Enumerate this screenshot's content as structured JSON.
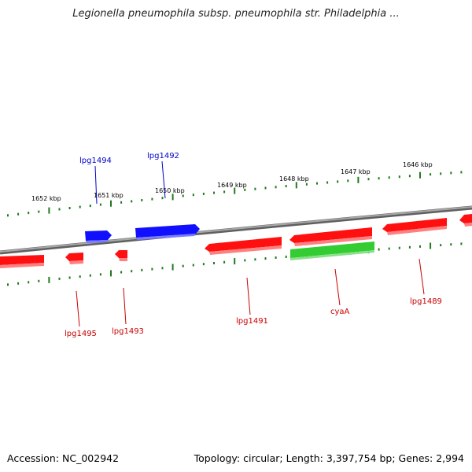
{
  "title": "Legionella pneumophila subsp. pneumophila str. Philadelphia ...",
  "footer": {
    "accession": "Accession: NC_002942",
    "summary": "Topology: circular; Length: 3,397,754 bp; Genes: 2,994"
  },
  "colors": {
    "backbone": "#808080",
    "ticks": "#1f7a1f",
    "forward_gene": "#1010ff",
    "reverse_gene": "#ff1010",
    "rna_gene": "#33cc33",
    "forward_label": "#0000cc",
    "reverse_label": "#cc0000"
  },
  "tick_labels": [
    "1652 kbp",
    "1651 kbp",
    "1650 kbp",
    "1649 kbp",
    "1648 kbp",
    "1647 kbp",
    "1646 kbp"
  ],
  "gene_labels": [
    {
      "name": "lpg1494",
      "strand": "forward"
    },
    {
      "name": "lpg1492",
      "strand": "forward"
    },
    {
      "name": "lpg1495",
      "strand": "reverse"
    },
    {
      "name": "lpg1493",
      "strand": "reverse"
    },
    {
      "name": "lpg1491",
      "strand": "reverse"
    },
    {
      "name": "cyaA",
      "strand": "reverse"
    },
    {
      "name": "lpg1489",
      "strand": "reverse"
    }
  ]
}
